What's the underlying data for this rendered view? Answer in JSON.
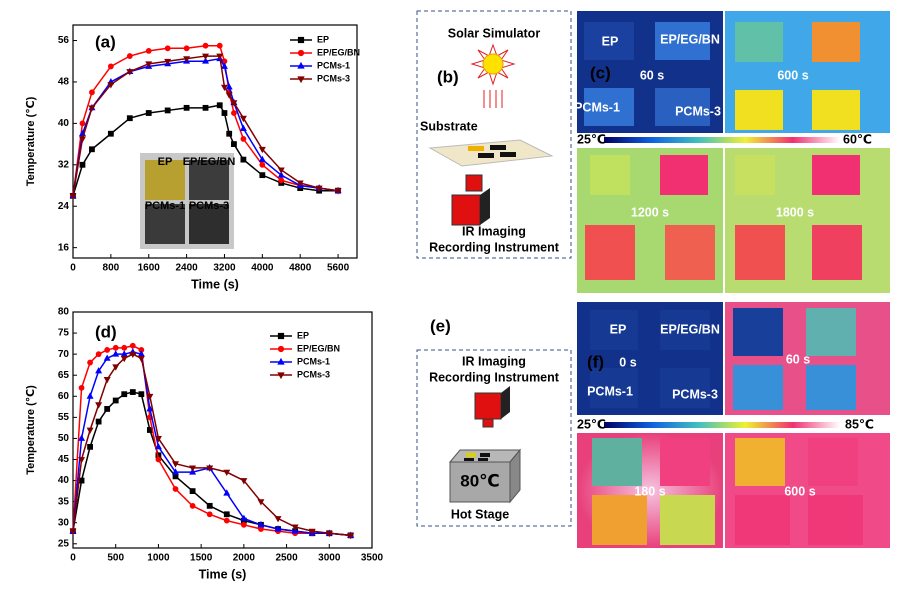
{
  "chart_data": [
    {
      "type": "line",
      "label": "(a)",
      "xlabel": "Time (s)",
      "ylabel": "Temperature (℃)",
      "x": [
        0,
        200,
        400,
        800,
        1200,
        1600,
        2000,
        2400,
        2800,
        3100,
        3200,
        3300,
        3400,
        3600,
        4000,
        4400,
        4800,
        5200,
        5600
      ],
      "xlim": [
        0,
        6000
      ],
      "xticks": [
        0,
        800,
        1600,
        2400,
        3200,
        4000,
        4800,
        5600
      ],
      "ylim": [
        14,
        59
      ],
      "yticks": [
        16,
        24,
        32,
        40,
        48,
        56
      ],
      "series": [
        {
          "name": "EP",
          "color": "#000000",
          "marker": "square",
          "values": [
            26,
            32,
            35,
            38,
            41,
            42,
            42.5,
            43,
            43,
            43.5,
            42,
            38,
            36,
            33,
            30,
            28.5,
            27.5,
            27,
            27
          ]
        },
        {
          "name": "EP/EG/BN",
          "color": "#ff0000",
          "marker": "circle",
          "values": [
            26,
            40,
            46,
            51,
            53,
            54,
            54.5,
            54.5,
            55,
            55,
            52,
            46,
            42,
            37,
            32,
            29,
            28,
            27.5,
            27
          ]
        },
        {
          "name": "PCMs-1",
          "color": "#0000ff",
          "marker": "triangle",
          "values": [
            26,
            38,
            43,
            48,
            50,
            51,
            51.5,
            52,
            52,
            52.5,
            51,
            47,
            44,
            39,
            33,
            30,
            28,
            27.5,
            27
          ]
        },
        {
          "name": "PCMs-3",
          "color": "#800000",
          "marker": "down-triangle",
          "values": [
            26,
            37,
            43,
            47.5,
            50,
            51.5,
            52,
            52.5,
            53,
            53,
            47,
            45.5,
            44,
            41,
            35,
            31,
            28.5,
            27.5,
            27
          ]
        }
      ]
    },
    {
      "type": "line",
      "label": "(d)",
      "xlabel": "Time (s)",
      "ylabel": "Temperature (℃)",
      "x": [
        0,
        100,
        200,
        300,
        400,
        500,
        600,
        700,
        800,
        900,
        1000,
        1200,
        1400,
        1600,
        1800,
        2000,
        2200,
        2400,
        2600,
        2800,
        3000,
        3250
      ],
      "xlim": [
        0,
        3500
      ],
      "xticks": [
        0,
        500,
        1000,
        1500,
        2000,
        2500,
        3000,
        3500
      ],
      "ylim": [
        24,
        80
      ],
      "yticks": [
        25,
        30,
        35,
        40,
        45,
        50,
        55,
        60,
        65,
        70,
        75,
        80
      ],
      "series": [
        {
          "name": "EP",
          "color": "#000000",
          "marker": "square",
          "values": [
            28,
            40,
            48,
            54,
            57,
            59,
            60.5,
            61,
            60.5,
            52,
            46,
            41,
            37.5,
            34,
            32,
            30.5,
            29.5,
            28.5,
            28,
            27.5,
            27.5,
            27
          ]
        },
        {
          "name": "EP/EG/BN",
          "color": "#ff0000",
          "marker": "circle",
          "values": [
            28,
            62,
            68,
            70,
            71,
            71.5,
            71.5,
            72,
            71,
            55,
            45,
            38,
            34,
            32,
            30.5,
            29.5,
            28.5,
            28,
            27.5,
            27.5,
            27.5,
            27
          ]
        },
        {
          "name": "PCMs-1",
          "color": "#0000ff",
          "marker": "triangle",
          "values": [
            28,
            50,
            60,
            66,
            69,
            70,
            70,
            70.5,
            70,
            57,
            48,
            42,
            42,
            43,
            37,
            31,
            29.5,
            28.5,
            28,
            27.5,
            27.5,
            27
          ]
        },
        {
          "name": "PCMs-3",
          "color": "#800000",
          "marker": "down-triangle",
          "values": [
            28,
            45,
            52,
            58,
            64,
            67,
            69,
            70,
            69,
            60,
            50,
            44,
            43,
            43,
            42,
            40,
            35,
            31,
            29,
            28,
            27.5,
            27
          ]
        }
      ]
    }
  ],
  "inset": [
    "EP",
    "EP/EG/BN",
    "PCMs-1",
    "PCMs-3"
  ],
  "panel_b": {
    "label": "(b)",
    "simulator": "Solar Simulator",
    "substrate": "Substrate",
    "instrument": [
      "IR Imaging",
      "Recording Instrument"
    ]
  },
  "panel_c": {
    "label": "(c)",
    "samples": [
      "EP",
      "EP/EG/BN",
      "PCMs-1",
      "PCMs-3"
    ],
    "frames": [
      "60 s",
      "600 s",
      "1200 s",
      "1800 s"
    ],
    "scale": [
      "25℃",
      "60℃"
    ]
  },
  "panel_e": {
    "label": "(e)",
    "instrument": [
      "IR Imaging",
      "Recording Instrument"
    ],
    "stage_temp": "80℃",
    "stage": "Hot Stage"
  },
  "panel_f": {
    "label": "(f)",
    "samples": [
      "EP",
      "EP/EG/BN",
      "PCMs-1",
      "PCMs-3"
    ],
    "frames": [
      "0 s",
      "60 s",
      "180 s",
      "600 s"
    ],
    "scale": [
      "25℃",
      "85℃"
    ]
  }
}
